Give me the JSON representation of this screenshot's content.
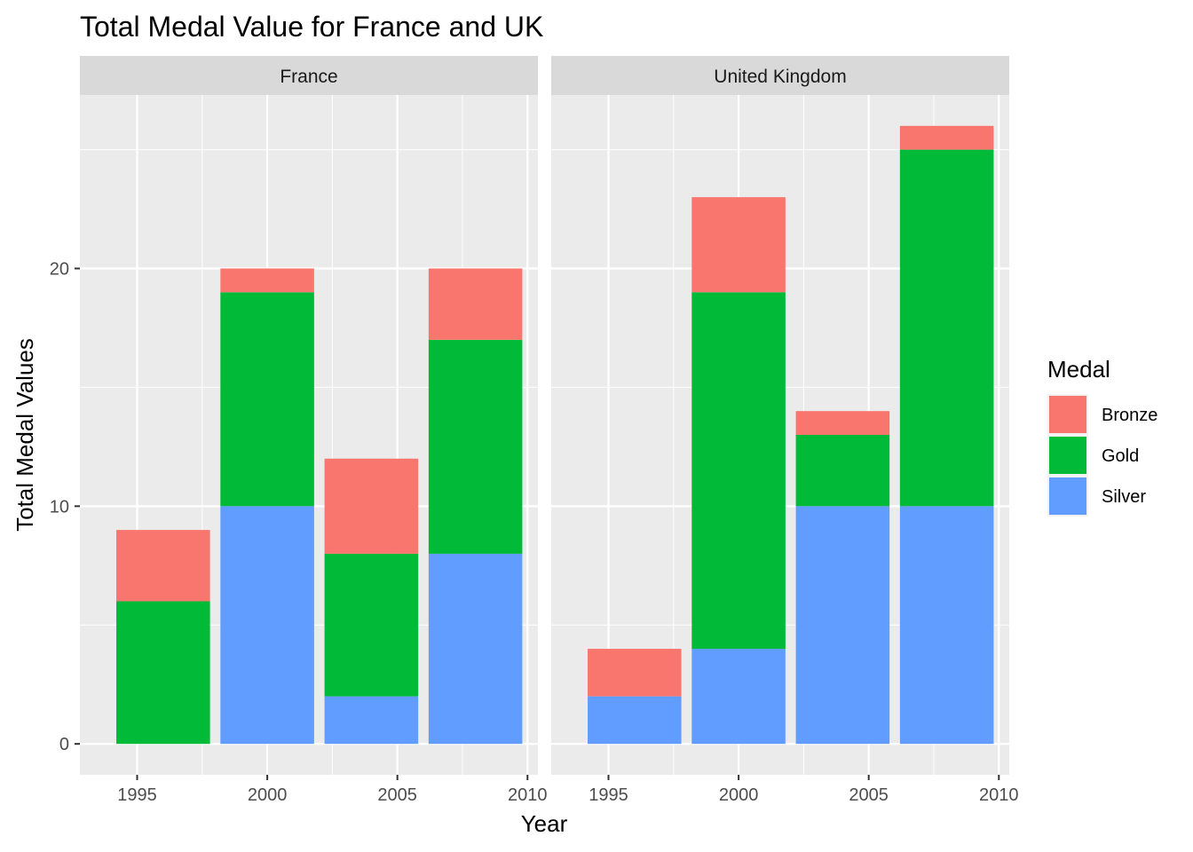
{
  "chart_data": {
    "type": "bar",
    "stacked": true,
    "title": "Total Medal Value for France and UK",
    "xlabel": "Year",
    "ylabel": "Total Medal Values",
    "x_ticks": [
      1995,
      2000,
      2005,
      2010
    ],
    "y_ticks": [
      0,
      10,
      20
    ],
    "xlim": [
      1992.8,
      2010.4
    ],
    "ylim": [
      -1.3,
      27.3
    ],
    "grid": true,
    "legend": {
      "title": "Medal",
      "placement": "right",
      "entries": [
        {
          "name": "Bronze",
          "color": "#F8766D"
        },
        {
          "name": "Gold",
          "color": "#00BA38"
        },
        {
          "name": "Silver",
          "color": "#619CFF"
        }
      ]
    },
    "stack_order_bottom_to_top": [
      "Silver",
      "Gold",
      "Bronze"
    ],
    "panels": [
      {
        "facet": "France",
        "bars": [
          {
            "x": 1996,
            "Silver": 0,
            "Gold": 6,
            "Bronze": 3
          },
          {
            "x": 2000,
            "Silver": 10,
            "Gold": 9,
            "Bronze": 1
          },
          {
            "x": 2004,
            "Silver": 2,
            "Gold": 6,
            "Bronze": 4
          },
          {
            "x": 2008,
            "Silver": 8,
            "Gold": 9,
            "Bronze": 3
          }
        ]
      },
      {
        "facet": "United Kingdom",
        "bars": [
          {
            "x": 1996,
            "Silver": 2,
            "Gold": 0,
            "Bronze": 2
          },
          {
            "x": 2000,
            "Silver": 4,
            "Gold": 15,
            "Bronze": 4
          },
          {
            "x": 2004,
            "Silver": 10,
            "Gold": 3,
            "Bronze": 1
          },
          {
            "x": 2008,
            "Silver": 10,
            "Gold": 15,
            "Bronze": 1
          }
        ]
      }
    ],
    "bar_width_years": 3.6
  }
}
